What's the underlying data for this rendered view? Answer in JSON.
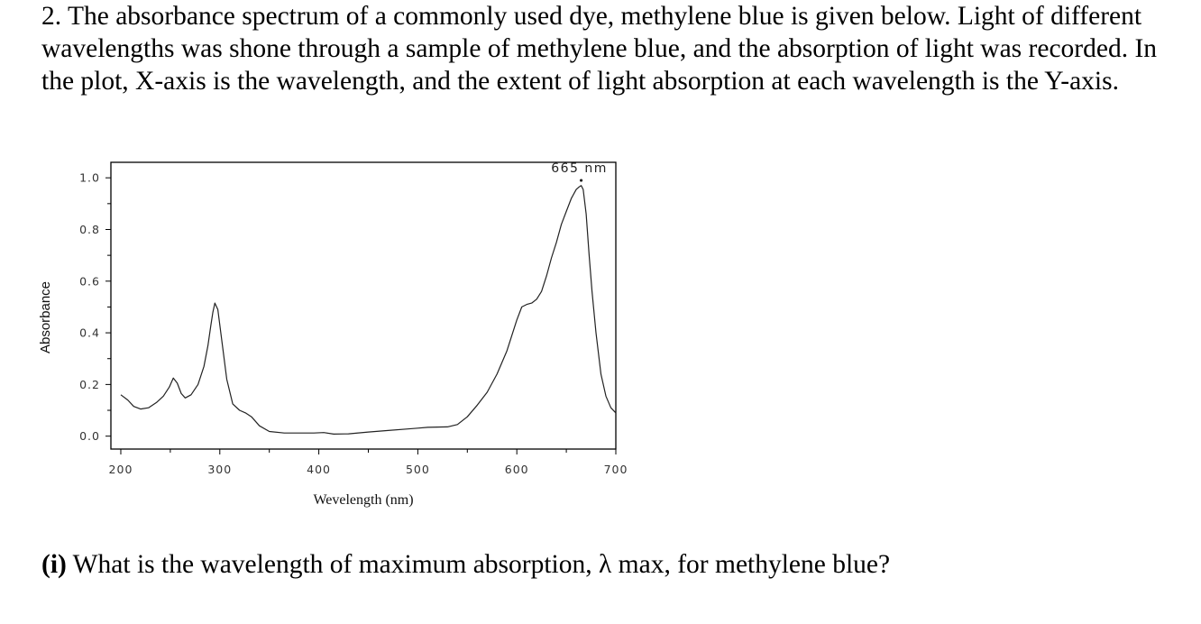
{
  "question": {
    "text": "2. The absorbance spectrum of a commonly used dye, methylene blue is given below. Light of different wavelengths was shone through a sample of methylene blue, and the absorption of light was recorded. In the plot, X-axis is the wavelength, and the extent of light absorption at each wavelength is the Y-axis."
  },
  "sub_question": {
    "label": "(i)",
    "text": " What is the wavelength of maximum absorption, λ max, for methylene blue?"
  },
  "chart_data": {
    "type": "line",
    "title": "",
    "xlabel": "Wevelength (nm)",
    "ylabel": "Absorbance",
    "xlim": [
      190,
      700
    ],
    "ylim": [
      -0.05,
      1.06
    ],
    "x_ticks": [
      200,
      300,
      400,
      500,
      600,
      700
    ],
    "x_tick_labels": [
      "200",
      "300",
      "400",
      "500",
      "600",
      "700"
    ],
    "y_ticks": [
      0.0,
      0.2,
      0.4,
      0.6,
      0.8,
      1.0
    ],
    "y_tick_labels": [
      "0.0",
      "0.2",
      "0.4",
      "0.6",
      "0.8",
      "1.0"
    ],
    "annotation": {
      "text": "665 nm",
      "x": 665,
      "y": 0.99
    },
    "series": [
      {
        "x": [
          200,
          207,
          213,
          220,
          228,
          236,
          243,
          249,
          253,
          257,
          261,
          265,
          271,
          278,
          284,
          288,
          291,
          293,
          295,
          298,
          302,
          307,
          313,
          320,
          326,
          332,
          340,
          350,
          365,
          380,
          395,
          405,
          415,
          430,
          450,
          470,
          490,
          500,
          510,
          520,
          530,
          540,
          550,
          560,
          570,
          580,
          590,
          595,
          600,
          605,
          610,
          615,
          620,
          625,
          630,
          635,
          640,
          645,
          650,
          655,
          660,
          663,
          665,
          667,
          670,
          673,
          676,
          680,
          685,
          690,
          695,
          700
        ],
        "y": [
          0.16,
          0.14,
          0.115,
          0.105,
          0.11,
          0.13,
          0.155,
          0.19,
          0.225,
          0.205,
          0.165,
          0.148,
          0.16,
          0.2,
          0.27,
          0.35,
          0.43,
          0.48,
          0.515,
          0.49,
          0.37,
          0.22,
          0.125,
          0.1,
          0.09,
          0.075,
          0.04,
          0.018,
          0.012,
          0.012,
          0.012,
          0.014,
          0.008,
          0.009,
          0.016,
          0.022,
          0.028,
          0.031,
          0.034,
          0.035,
          0.036,
          0.045,
          0.075,
          0.12,
          0.17,
          0.24,
          0.33,
          0.39,
          0.45,
          0.5,
          0.51,
          0.515,
          0.53,
          0.56,
          0.62,
          0.69,
          0.75,
          0.82,
          0.87,
          0.92,
          0.955,
          0.965,
          0.97,
          0.955,
          0.86,
          0.7,
          0.56,
          0.4,
          0.24,
          0.155,
          0.11,
          0.09
        ]
      }
    ]
  }
}
